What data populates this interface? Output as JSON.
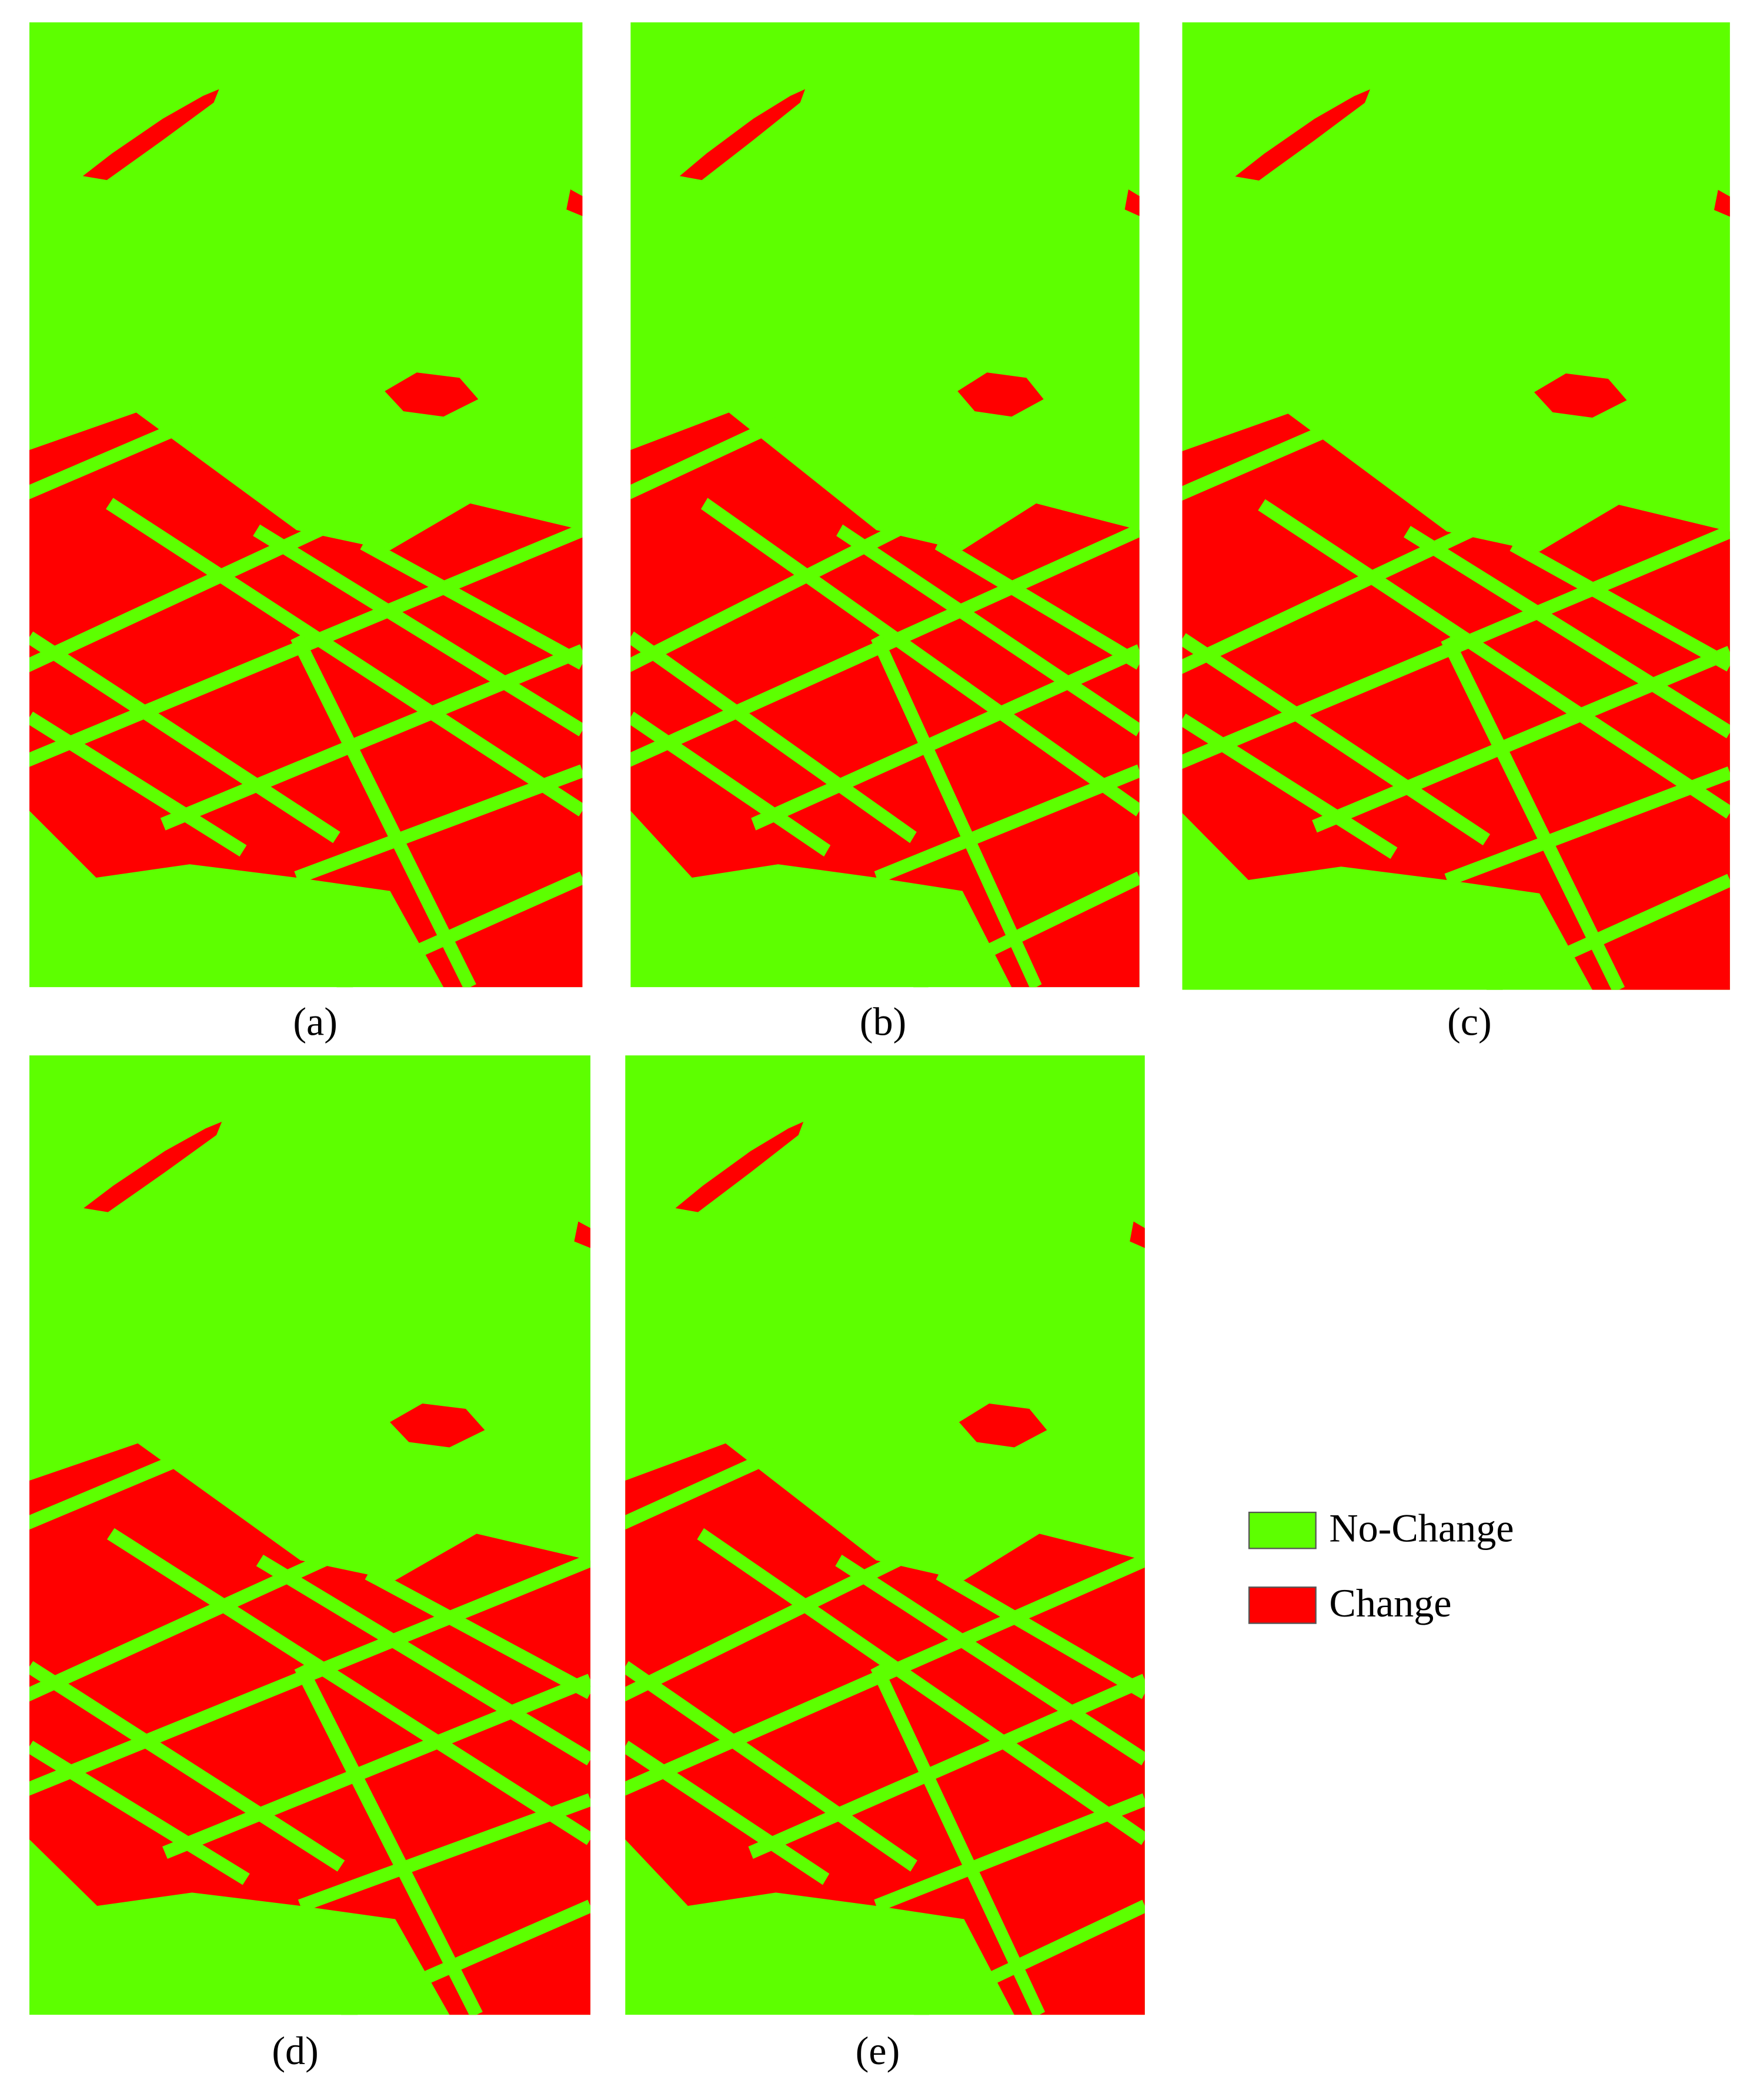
{
  "panels": [
    {
      "label": "(a)"
    },
    {
      "label": "(b)"
    },
    {
      "label": "(c)"
    },
    {
      "label": "(d)"
    },
    {
      "label": "(e)"
    }
  ],
  "legend": [
    {
      "label": "No-Change",
      "color": "#5dff00"
    },
    {
      "label": "Change",
      "color": "#ff0000"
    }
  ]
}
